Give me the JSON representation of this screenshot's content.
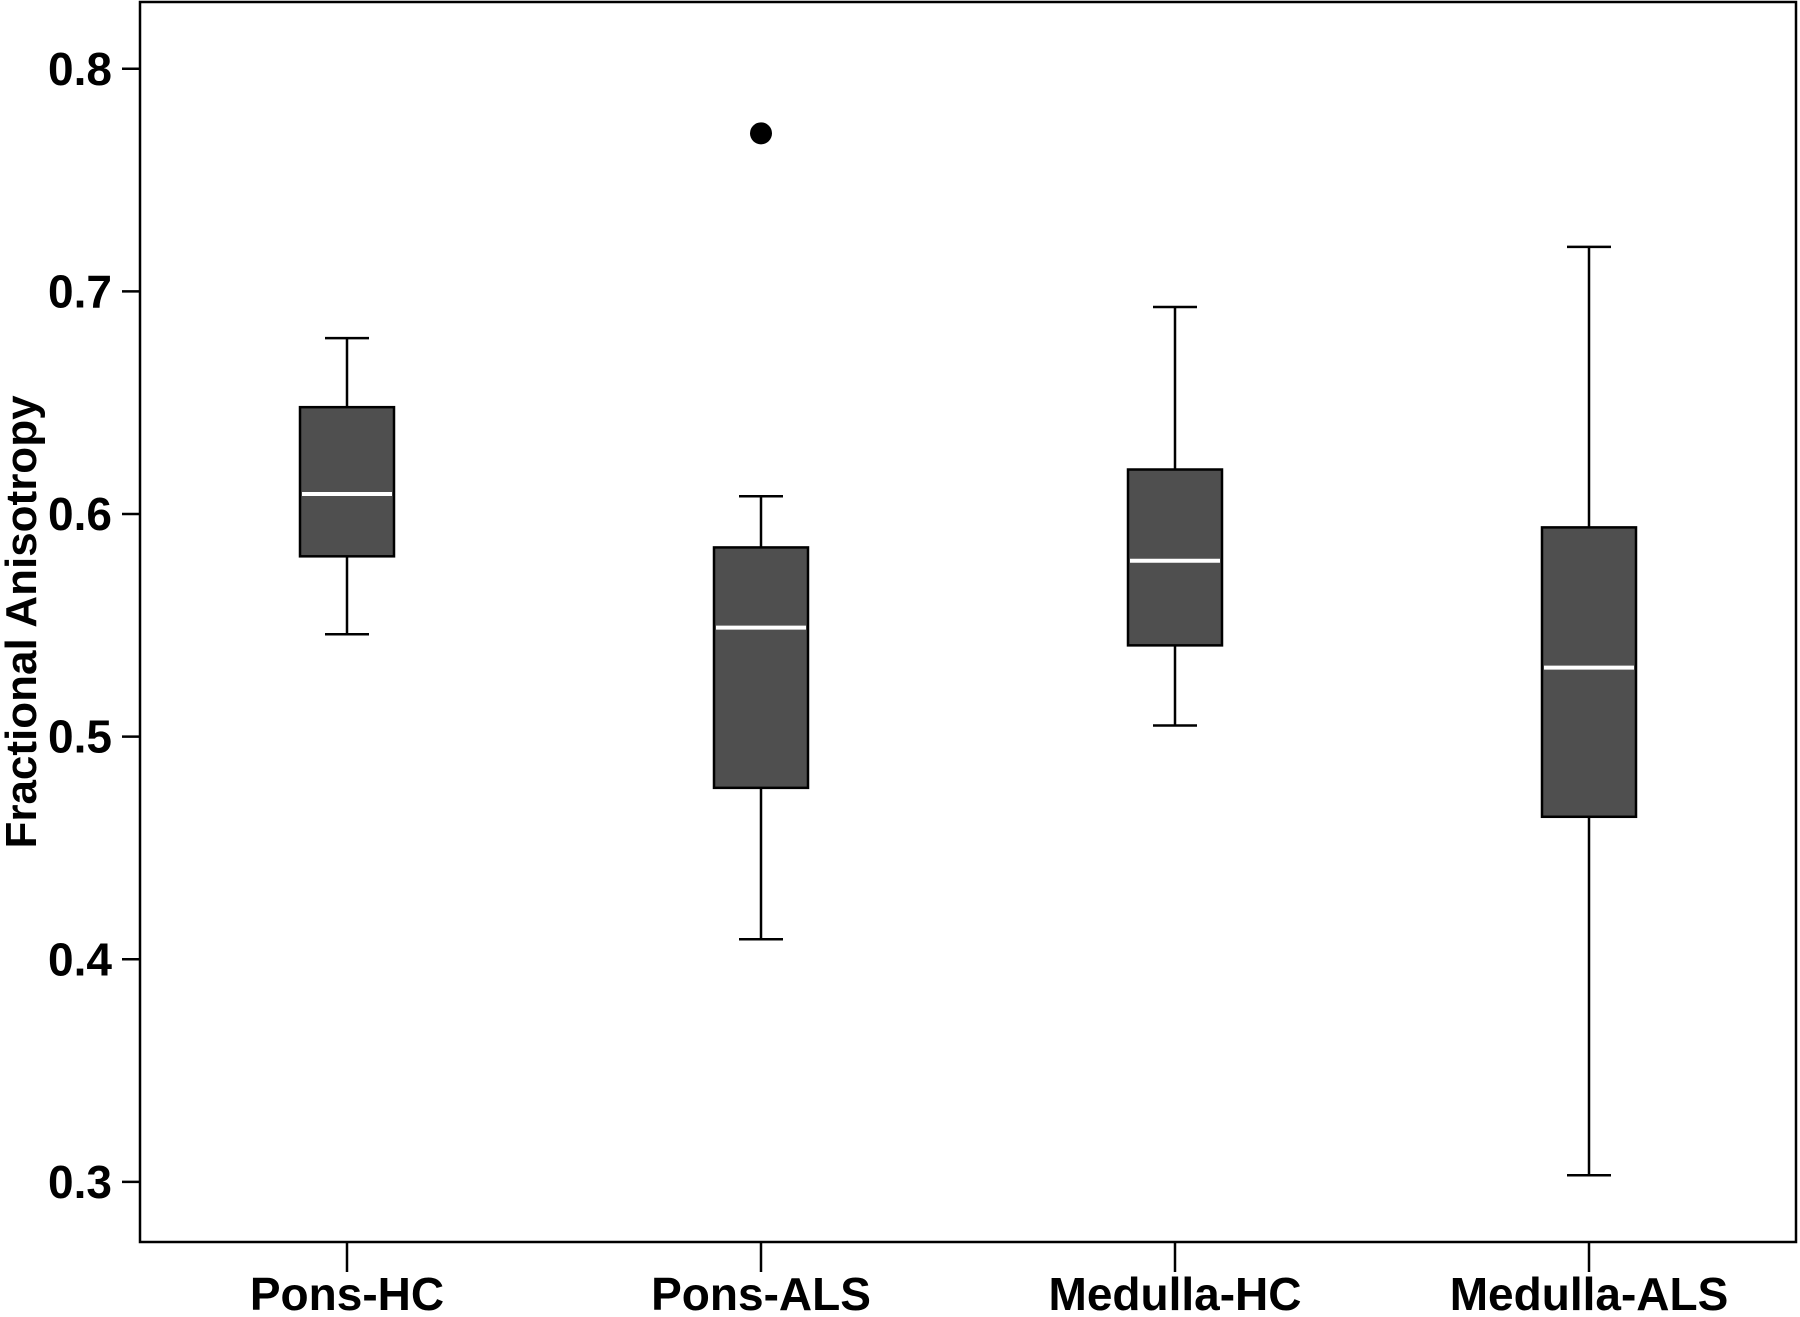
{
  "chart_data": {
    "type": "box",
    "ylabel": "Fractional Anisotropy",
    "xlabel": "",
    "ylim": [
      0.273,
      0.83
    ],
    "yticks": [
      "0.3",
      "0.4",
      "0.5",
      "0.6",
      "0.7",
      "0.8"
    ],
    "grid": false,
    "categories": [
      "Pons-HC",
      "Pons-ALS",
      "Medulla-HC",
      "Medulla-ALS"
    ],
    "boxes": [
      {
        "name": "Pons-HC",
        "whisker_low": 0.546,
        "q1": 0.581,
        "median": 0.609,
        "q3": 0.648,
        "whisker_high": 0.679,
        "outliers": []
      },
      {
        "name": "Pons-ALS",
        "whisker_low": 0.409,
        "q1": 0.477,
        "median": 0.549,
        "q3": 0.585,
        "whisker_high": 0.608,
        "outliers": [
          0.771
        ]
      },
      {
        "name": "Medulla-HC",
        "whisker_low": 0.505,
        "q1": 0.541,
        "median": 0.579,
        "q3": 0.62,
        "whisker_high": 0.693,
        "outliers": []
      },
      {
        "name": "Medulla-ALS",
        "whisker_low": 0.303,
        "q1": 0.464,
        "median": 0.531,
        "q3": 0.594,
        "whisker_high": 0.72,
        "outliers": []
      }
    ],
    "colors": {
      "box_fill": "#4f4f4f",
      "box_stroke": "#000000",
      "median": "#ffffff",
      "outlier": "#000000"
    }
  }
}
